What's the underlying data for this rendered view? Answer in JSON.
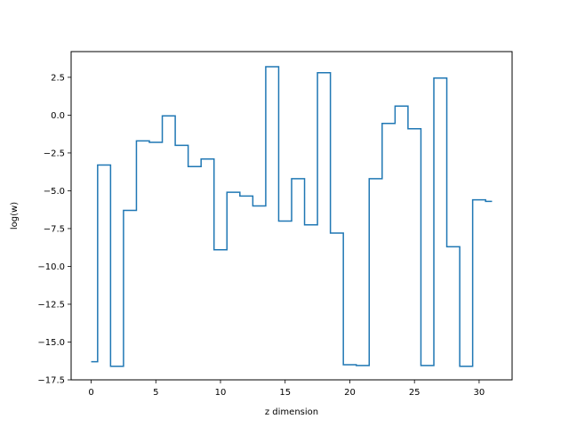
{
  "chart_data": {
    "type": "line",
    "drawstyle": "steps-mid",
    "xlabel": "z dimension",
    "ylabel": "log(w)",
    "xlim": [
      -1.55,
      32.55
    ],
    "ylim": [
      -17.5,
      4.2
    ],
    "xticks": [
      0,
      5,
      10,
      15,
      20,
      25,
      30
    ],
    "xtick_labels": [
      "0",
      "5",
      "10",
      "15",
      "20",
      "25",
      "30"
    ],
    "yticks": [
      2.5,
      0.0,
      -2.5,
      -5.0,
      -7.5,
      -10.0,
      -12.5,
      -15.0,
      -17.5
    ],
    "ytick_labels": [
      "2.5",
      "0.0",
      "−2.5",
      "−5.0",
      "−7.5",
      "−10.0",
      "−12.5",
      "−15.0",
      "−17.5"
    ],
    "grid": false,
    "line_color": "#1f77b4",
    "series": [
      {
        "x": [
          0,
          1,
          2,
          3,
          4,
          5,
          6,
          7,
          8,
          9,
          10,
          11,
          12,
          13,
          14,
          15,
          16,
          17,
          18,
          19,
          20,
          21,
          22,
          23,
          24,
          25,
          26,
          27,
          28,
          29,
          30,
          31
        ],
        "values": [
          -16.3,
          -3.3,
          -16.6,
          -6.3,
          -1.7,
          -1.8,
          -0.05,
          -2.0,
          -3.4,
          -2.9,
          -8.9,
          -5.1,
          -5.35,
          -6.0,
          3.2,
          -7.0,
          -4.2,
          -7.25,
          2.8,
          -7.8,
          -16.5,
          -16.55,
          -4.2,
          -0.55,
          0.6,
          -0.9,
          -16.55,
          2.45,
          -8.7,
          -16.6,
          -5.6,
          -5.7
        ]
      }
    ]
  }
}
